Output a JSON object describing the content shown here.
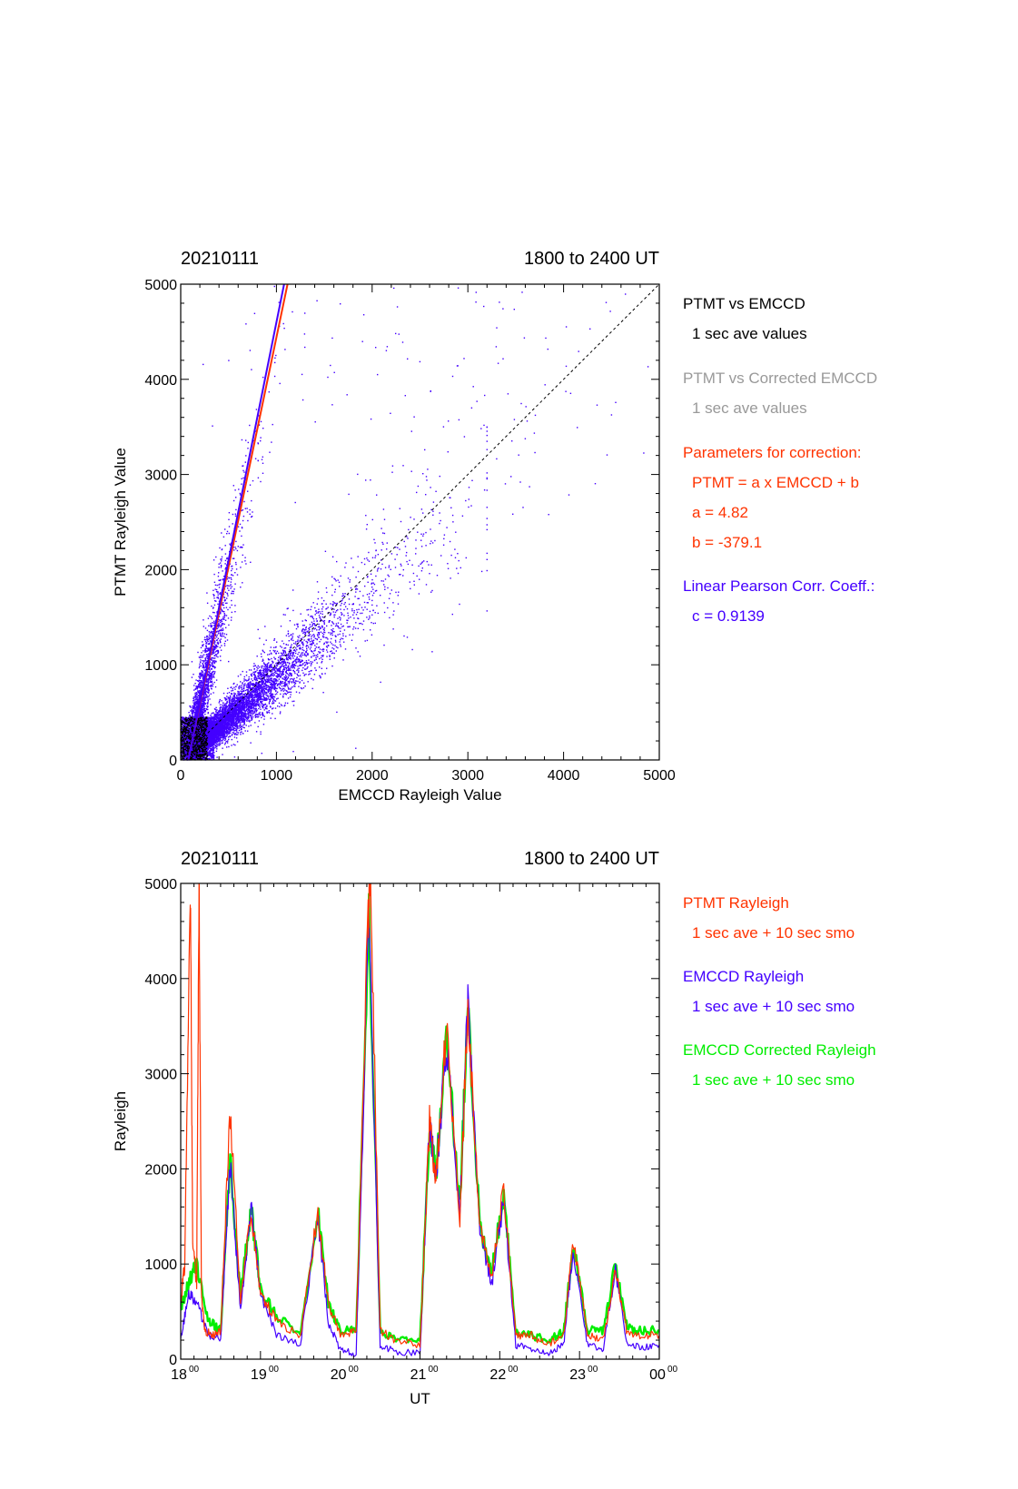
{
  "chart_data": [
    {
      "type": "scatter",
      "title_left": "20210111",
      "title_right": "1800 to 2400 UT",
      "xlabel": "EMCCD Rayleigh Value",
      "ylabel": "PTMT Rayleigh Value",
      "xlim": [
        0,
        5000
      ],
      "ylim": [
        0,
        5000
      ],
      "xticks": [
        "0",
        "1000",
        "2000",
        "3000",
        "4000",
        "5000"
      ],
      "yticks": [
        "0",
        "1000",
        "2000",
        "3000",
        "4000",
        "5000"
      ],
      "grid": false,
      "legend_placement": "right, outside plot",
      "legend": [
        {
          "text": "PTMT vs EMCCD",
          "color": "#000000"
        },
        {
          "text": "1 sec ave values",
          "color": "#000000",
          "indent": true
        },
        {
          "text": "PTMT vs Corrected EMCCD",
          "color": "#999999"
        },
        {
          "text": "1 sec ave values",
          "color": "#999999",
          "indent": true
        },
        {
          "text": "Parameters for correction:",
          "color": "#ff3300"
        },
        {
          "text": "PTMT = a x EMCCD + b",
          "color": "#ff3300",
          "indent": true
        },
        {
          "text": "a = 4.82",
          "color": "#ff3300",
          "indent": true
        },
        {
          "text": "b = -379.1",
          "color": "#ff3300",
          "indent": true
        },
        {
          "text": "Linear Pearson Corr. Coeff.:",
          "color": "#4400ff"
        },
        {
          "text": "c = 0.9139",
          "color": "#4400ff",
          "indent": true
        }
      ],
      "fit_lines": [
        {
          "slope": 4.82,
          "intercept": -379.1,
          "color": "#ff3300"
        },
        {
          "slope": 5.0,
          "intercept": -400,
          "color": "#4400ff"
        }
      ],
      "identity_line": {
        "from": [
          0,
          0
        ],
        "to": [
          5000,
          5000
        ],
        "style": "dashed",
        "color": "#000000"
      },
      "point_clusters": [
        {
          "name_hint": "steep branch",
          "x_mean": 400,
          "x_sd": 120,
          "slope": 4.8,
          "y_max": 5000,
          "count": 2800,
          "color": "#4400ff"
        },
        {
          "name_hint": "main branch",
          "x_max": 3200,
          "slope": 0.88,
          "count": 8000,
          "color": "#4400ff"
        },
        {
          "name_hint": "low cluster",
          "x_max": 350,
          "y_max": 450,
          "count": 1500,
          "color": "#4400ff"
        },
        {
          "name_hint": "black cluster",
          "x_max": 280,
          "y_max": 450,
          "count": 700,
          "color": "#000000"
        },
        {
          "name_hint": "sparse outliers",
          "x_max": 4900,
          "y_max": 5000,
          "count": 240,
          "color": "#4400ff"
        }
      ],
      "colors": {
        "ptmt": "#ff3300",
        "emccd": "#4400ff",
        "black": "#000000"
      }
    },
    {
      "type": "line",
      "title_left": "20210111",
      "title_right": "1800 to 2400 UT",
      "xlabel": "UT",
      "ylabel": "Rayleigh",
      "xlim": [
        18,
        24
      ],
      "ylim": [
        0,
        5000
      ],
      "xticks": [
        {
          "base": "18",
          "sup": "00"
        },
        {
          "base": "19",
          "sup": "00"
        },
        {
          "base": "20",
          "sup": "00"
        },
        {
          "base": "21",
          "sup": "00"
        },
        {
          "base": "22",
          "sup": "00"
        },
        {
          "base": "23",
          "sup": "00"
        },
        {
          "base": "00",
          "sup": "00"
        }
      ],
      "yticks": [
        "0",
        "1000",
        "2000",
        "3000",
        "4000",
        "5000"
      ],
      "grid": false,
      "legend_placement": "right, outside plot",
      "legend": [
        {
          "text": "PTMT Rayleigh",
          "color": "#ff3300"
        },
        {
          "text": "1 sec ave + 10 sec smo",
          "color": "#ff3300",
          "indent": true
        },
        {
          "text": "EMCCD Rayleigh",
          "color": "#4400ff"
        },
        {
          "text": "1 sec ave + 10 sec smo",
          "color": "#4400ff",
          "indent": true
        },
        {
          "text": "EMCCD Corrected Rayleigh",
          "color": "#00ee00"
        },
        {
          "text": "1 sec ave + 10 sec smo",
          "color": "#00ee00",
          "indent": true
        }
      ],
      "series": [
        {
          "color": "#00ee00",
          "x": [
            18.0,
            18.1,
            18.2,
            18.35,
            18.5,
            18.62,
            18.75,
            18.88,
            19.0,
            19.2,
            19.5,
            19.72,
            19.85,
            20.0,
            20.2,
            20.36,
            20.5,
            20.7,
            21.0,
            21.12,
            21.2,
            21.33,
            21.5,
            21.6,
            21.75,
            21.9,
            22.05,
            22.2,
            22.4,
            22.6,
            22.8,
            22.92,
            23.1,
            23.3,
            23.45,
            23.6,
            23.8,
            24.0
          ],
          "y": [
            550,
            800,
            1000,
            400,
            300,
            2100,
            650,
            1600,
            750,
            450,
            280,
            1550,
            600,
            300,
            300,
            4600,
            300,
            200,
            200,
            2400,
            1900,
            3400,
            1600,
            3700,
            1400,
            900,
            1750,
            300,
            250,
            200,
            280,
            1200,
            300,
            300,
            1000,
            320,
            300,
            300
          ]
        },
        {
          "color": "#4400ff",
          "x": [
            18.0,
            18.1,
            18.2,
            18.35,
            18.5,
            18.62,
            18.75,
            18.88,
            19.0,
            19.2,
            19.5,
            19.72,
            19.85,
            20.0,
            20.2,
            20.36,
            20.5,
            20.7,
            21.0,
            21.12,
            21.2,
            21.33,
            21.5,
            21.6,
            21.75,
            21.9,
            22.05,
            22.2,
            22.4,
            22.6,
            22.8,
            22.92,
            23.1,
            23.3,
            23.45,
            23.6,
            23.8,
            24.0
          ],
          "y": [
            200,
            700,
            600,
            250,
            220,
            2050,
            500,
            1600,
            700,
            250,
            150,
            1500,
            400,
            100,
            50,
            4700,
            150,
            80,
            60,
            2500,
            1900,
            3300,
            1500,
            3800,
            1300,
            800,
            1700,
            150,
            100,
            50,
            150,
            1150,
            150,
            100,
            950,
            150,
            120,
            150
          ]
        },
        {
          "color": "#ff3300",
          "x": [
            18.0,
            18.05,
            18.12,
            18.15,
            18.2,
            18.23,
            18.26,
            18.3,
            18.4,
            18.5,
            18.62,
            18.75,
            18.88,
            19.0,
            19.2,
            19.5,
            19.72,
            19.85,
            20.0,
            20.2,
            20.35,
            20.38,
            20.5,
            20.7,
            21.0,
            21.12,
            21.2,
            21.33,
            21.5,
            21.6,
            21.75,
            21.9,
            22.05,
            22.2,
            22.4,
            22.6,
            22.8,
            22.92,
            23.1,
            23.3,
            23.45,
            23.6,
            23.8,
            24.0
          ],
          "y": [
            600,
            1000,
            5000,
            1200,
            800,
            5000,
            700,
            300,
            250,
            300,
            2600,
            600,
            1550,
            700,
            400,
            250,
            1550,
            600,
            250,
            300,
            4700,
            5000,
            300,
            200,
            150,
            2500,
            1850,
            3550,
            1500,
            3700,
            1400,
            850,
            1800,
            250,
            250,
            150,
            250,
            1250,
            250,
            200,
            950,
            250,
            250,
            250
          ]
        }
      ],
      "colors": {
        "ptmt": "#ff3300",
        "emccd": "#4400ff",
        "corrected": "#00ee00"
      }
    }
  ]
}
